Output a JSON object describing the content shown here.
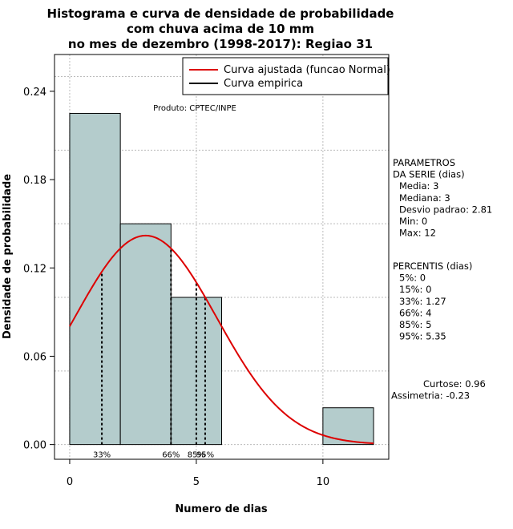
{
  "chart_data": {
    "type": "bar",
    "title": [
      "Histograma e curva de densidade de probabilidade",
      "com chuva acima de 10 mm",
      "no mes de dezembro (1998-2017): Regiao 31"
    ],
    "xlabel": "Numero de dias",
    "ylabel": "Densidade de probabilidade",
    "xlim": [
      -0.6,
      12.6
    ],
    "ylim": [
      -0.01,
      0.265
    ],
    "x_ticks": [
      0,
      5,
      10
    ],
    "x_tick_labels": [
      "0",
      "5",
      "10"
    ],
    "y_ticks": [
      0.0,
      0.06,
      0.12,
      0.18,
      0.24
    ],
    "y_tick_labels": [
      "0.00",
      "0.06",
      "0.12",
      "0.18",
      "0.24"
    ],
    "grid": true,
    "grid_x": [
      0,
      5,
      10
    ],
    "grid_y": [
      0.0,
      0.05,
      0.1,
      0.15,
      0.2,
      0.25
    ],
    "histogram": {
      "bins": [
        {
          "x0": 0,
          "x1": 2,
          "density": 0.225
        },
        {
          "x0": 2,
          "x1": 4,
          "density": 0.15
        },
        {
          "x0": 4,
          "x1": 6,
          "density": 0.1
        },
        {
          "x0": 6,
          "x1": 8,
          "density": 0.0
        },
        {
          "x0": 8,
          "x1": 10,
          "density": 0.0
        },
        {
          "x0": 10,
          "x1": 12,
          "density": 0.025
        }
      ],
      "color": "#b4cccc"
    },
    "fitted_curve": {
      "name": "Curva ajustada (funcao Normal)",
      "distribution": "normal",
      "mean": 3,
      "sd": 2.81,
      "x_range": [
        0,
        12
      ],
      "color": "#dd0000"
    },
    "empirical_curve": {
      "name": "Curva empirica",
      "color": "#000000"
    },
    "percentile_lines": [
      {
        "label": "33%",
        "x": 1.27
      },
      {
        "label": "66%",
        "x": 4
      },
      {
        "label": "85%",
        "x": 5
      },
      {
        "label": "95%",
        "x": 5.35
      }
    ],
    "legend_position": "top-right",
    "product_label": "Produto: CPTEC/INPE",
    "side_panel": {
      "parametros": [
        "PARAMETROS",
        "DA SERIE (dias)",
        "Media: 3",
        "Mediana: 3",
        "Desvio padrao: 2.81",
        "Min: 0",
        "Max: 12"
      ],
      "percentis": [
        "PERCENTIS (dias)",
        "5%: 0",
        "15%: 0",
        "33%: 1.27",
        "66%: 4",
        "85%: 5",
        "95%: 5.35"
      ],
      "shape": [
        "Curtose: 0.96",
        "Assimetria: -0.23"
      ]
    }
  }
}
